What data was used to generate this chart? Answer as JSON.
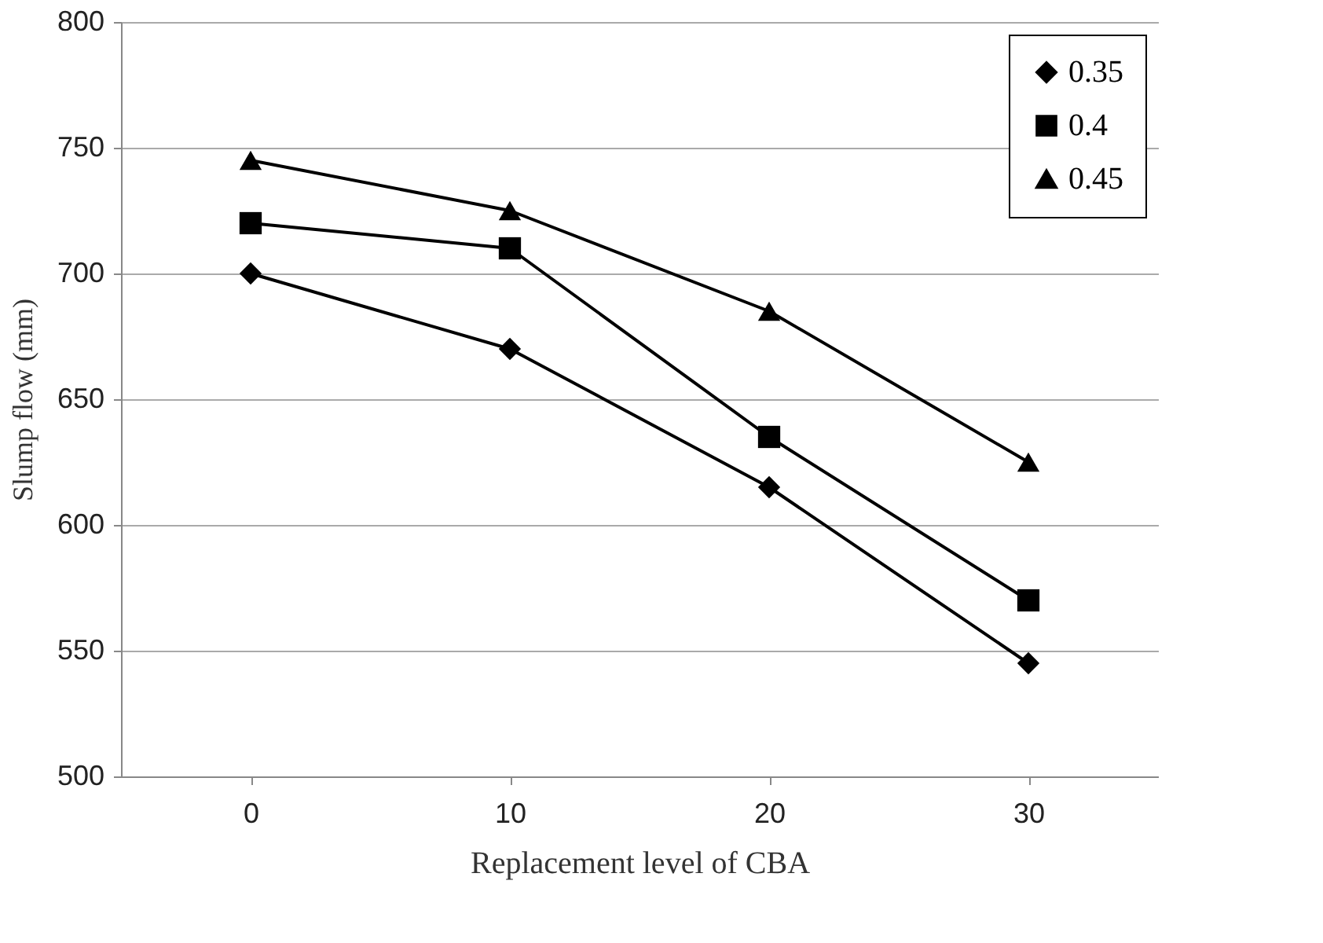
{
  "chart_data": {
    "type": "line",
    "xlabel": "Replacement level of CBA",
    "ylabel": "Slump flow (mm)",
    "categories": [
      "0",
      "10",
      "20",
      "30"
    ],
    "series": [
      {
        "name": "0.35",
        "color": "#000000",
        "marker": "diamond",
        "values": [
          700,
          670,
          615,
          545
        ]
      },
      {
        "name": "0.4",
        "color": "#000000",
        "marker": "square",
        "values": [
          720,
          710,
          635,
          570
        ]
      },
      {
        "name": "0.45",
        "color": "#000000",
        "marker": "triangle",
        "values": [
          745,
          725,
          685,
          625
        ]
      }
    ],
    "ylim": [
      500,
      800
    ],
    "yticks": [
      500,
      550,
      600,
      650,
      700,
      750,
      800
    ],
    "grid": "y",
    "legend": "top right",
    "line_style": "solid"
  }
}
